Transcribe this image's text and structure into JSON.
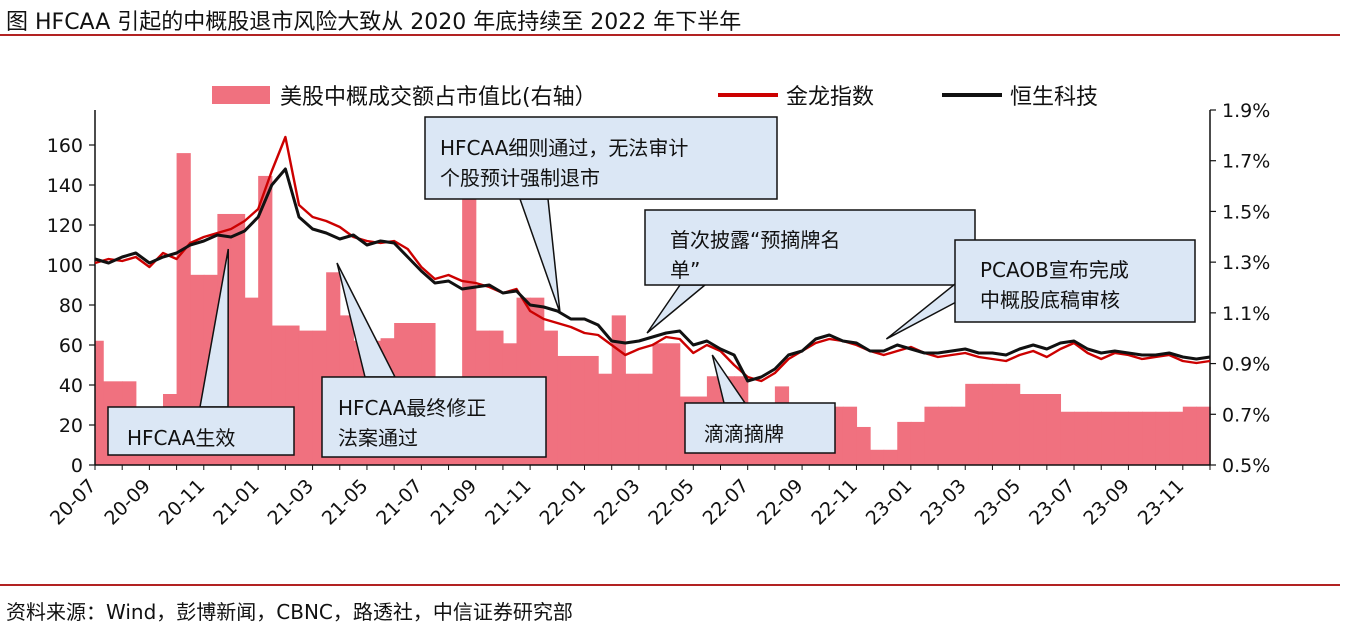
{
  "title": "图 HFCAA 引起的中概股退市风险大致从 2020 年底持续至 2022 年下半年",
  "source": "资料来源：Wind，彭博新闻，CBNC，路透社，中信证券研究部",
  "colors": {
    "bar": "#f0717f",
    "jinlong": "#cc0000",
    "hengsheng": "#111111",
    "callout_fill": "#dbe7f5",
    "rule": "#b22222"
  },
  "chart_data": {
    "type": "bar+line",
    "x_ticks": [
      "20-07",
      "20-09",
      "20-11",
      "21-01",
      "21-03",
      "21-05",
      "21-07",
      "21-09",
      "21-11",
      "22-01",
      "22-03",
      "22-05",
      "22-07",
      "22-09",
      "22-11",
      "23-01",
      "23-03",
      "23-05",
      "23-07",
      "23-09",
      "23-11"
    ],
    "y_left": {
      "ylim": [
        0,
        170
      ],
      "ticks": [
        "0",
        "20",
        "40",
        "60",
        "80",
        "100",
        "120",
        "140",
        "160"
      ]
    },
    "y_right": {
      "ylim": [
        0.5,
        1.9
      ],
      "ticks": [
        "0.5%",
        "0.7%",
        "0.9%",
        "1.1%",
        "1.3%",
        "1.5%",
        "1.7%",
        "1.9%"
      ]
    },
    "legend": [
      "美股中概成交额占市值比(右轴）",
      "金龙指数",
      "恒生科技"
    ],
    "bar_series": {
      "name": "美股中概成交额占市值比(右轴）",
      "x": [
        0,
        0.3,
        1,
        1.5,
        2,
        2.5,
        3,
        3.5,
        4,
        4.5,
        5,
        5.5,
        6,
        6.5,
        7,
        7.5,
        8,
        8.5,
        9,
        9.5,
        10,
        10.5,
        11,
        11.5,
        12,
        12.5,
        13,
        13.5,
        14,
        14.5,
        15,
        15.5,
        16,
        16.5,
        17,
        17.5,
        18,
        18.5,
        19,
        19.5,
        20,
        20.5,
        21,
        21.5,
        22,
        22.5,
        23,
        23.5,
        24,
        24.5,
        25,
        25.5,
        26,
        26.5,
        27,
        27.5,
        28,
        28.5,
        29,
        29.5,
        30,
        30.5,
        31,
        31.5,
        32,
        32.5,
        33,
        33.5,
        34,
        34.5,
        35,
        35.5,
        36,
        36.5,
        37,
        37.5,
        38,
        38.5,
        39,
        39.5,
        40,
        40.5,
        41
      ],
      "values": [
        0.99,
        0.83,
        0.83,
        0.62,
        0.62,
        0.78,
        1.73,
        1.25,
        1.25,
        1.49,
        1.49,
        1.16,
        1.64,
        1.05,
        1.05,
        1.03,
        1.03,
        1.26,
        1.09,
        0.99,
        0.99,
        1.0,
        1.06,
        1.06,
        1.06,
        0.84,
        0.84,
        1.57,
        1.03,
        1.03,
        0.98,
        1.16,
        1.16,
        1.03,
        0.93,
        0.93,
        0.93,
        0.86,
        1.09,
        0.86,
        0.86,
        0.98,
        0.98,
        0.77,
        0.77,
        0.85,
        0.85,
        0.85,
        0.71,
        0.71,
        0.81,
        0.71,
        0.71,
        0.71,
        0.73,
        0.73,
        0.65,
        0.56,
        0.56,
        0.67,
        0.67,
        0.73,
        0.73,
        0.73,
        0.82,
        0.82,
        0.82,
        0.82,
        0.78,
        0.78,
        0.78,
        0.71,
        0.71,
        0.71,
        0.71,
        0.71,
        0.71,
        0.71,
        0.71,
        0.71,
        0.73,
        0.73,
        0.73
      ]
    },
    "series": [
      {
        "name": "金龙指数",
        "x": [
          0,
          0.5,
          1,
          1.5,
          2,
          2.5,
          3,
          3.5,
          4,
          4.5,
          5,
          5.5,
          6,
          6.5,
          7,
          7.5,
          8,
          8.5,
          9,
          9.5,
          10,
          10.5,
          11,
          11.5,
          12,
          12.5,
          13,
          13.5,
          14,
          14.5,
          15,
          15.5,
          16,
          16.5,
          17,
          17.5,
          18,
          18.5,
          19,
          19.5,
          20,
          20.5,
          21,
          21.5,
          22,
          22.5,
          23,
          23.5,
          24,
          24.5,
          25,
          25.5,
          26,
          26.5,
          27,
          27.5,
          28,
          28.5,
          29,
          29.5,
          30,
          30.5,
          31,
          31.5,
          32,
          32.5,
          33,
          33.5,
          34,
          34.5,
          35,
          35.5,
          36,
          36.5,
          37,
          37.5,
          38,
          38.5,
          39,
          39.5,
          40,
          40.5,
          41
        ],
        "values": [
          101,
          103,
          102,
          104,
          99,
          106,
          103,
          111,
          114,
          116,
          118,
          122,
          128,
          147,
          164,
          130,
          124,
          122,
          119,
          114,
          112,
          111,
          112,
          108,
          99,
          93,
          95,
          92,
          91,
          89,
          86,
          88,
          77,
          73,
          71,
          69,
          66,
          65,
          60,
          55,
          58,
          60,
          64,
          63,
          56,
          60,
          57,
          50,
          44,
          42,
          46,
          53,
          57,
          61,
          63,
          62,
          60,
          57,
          55,
          57,
          59,
          56,
          54,
          55,
          56,
          54,
          53,
          52,
          55,
          57,
          54,
          58,
          61,
          56,
          53,
          56,
          55,
          53,
          54,
          55,
          52,
          51,
          52
        ]
      },
      {
        "name": "恒生科技",
        "x": [
          0,
          0.5,
          1,
          1.5,
          2,
          2.5,
          3,
          3.5,
          4,
          4.5,
          5,
          5.5,
          6,
          6.5,
          7,
          7.5,
          8,
          8.5,
          9,
          9.5,
          10,
          10.5,
          11,
          11.5,
          12,
          12.5,
          13,
          13.5,
          14,
          14.5,
          15,
          15.5,
          16,
          16.5,
          17,
          17.5,
          18,
          18.5,
          19,
          19.5,
          20,
          20.5,
          21,
          21.5,
          22,
          22.5,
          23,
          23.5,
          24,
          24.5,
          25,
          25.5,
          26,
          26.5,
          27,
          27.5,
          28,
          28.5,
          29,
          29.5,
          30,
          30.5,
          31,
          31.5,
          32,
          32.5,
          33,
          33.5,
          34,
          34.5,
          35,
          35.5,
          36,
          36.5,
          37,
          37.5,
          38,
          38.5,
          39,
          39.5,
          40,
          40.5,
          41
        ],
        "values": [
          103,
          101,
          104,
          106,
          101,
          104,
          106,
          110,
          112,
          115,
          114,
          117,
          124,
          140,
          148,
          124,
          118,
          116,
          113,
          115,
          110,
          112,
          111,
          104,
          97,
          91,
          92,
          88,
          89,
          90,
          86,
          87,
          80,
          79,
          77,
          73,
          73,
          70,
          62,
          61,
          62,
          64,
          66,
          67,
          60,
          62,
          58,
          55,
          42,
          44,
          48,
          55,
          57,
          63,
          65,
          62,
          61,
          57,
          57,
          60,
          58,
          56,
          56,
          57,
          58,
          56,
          56,
          55,
          58,
          60,
          58,
          61,
          62,
          58,
          56,
          57,
          56,
          55,
          55,
          56,
          54,
          53,
          54
        ]
      }
    ],
    "annotations": [
      {
        "lines": [
          "HFCAA生效"
        ],
        "target_x": 4.9,
        "target_y": 108
      },
      {
        "lines": [
          "HFCAA最终修正",
          "法案通过"
        ],
        "target_x": 8.9,
        "target_y": 101
      },
      {
        "lines": [
          "HFCAA细则通过，无法审计",
          "个股预计强制退市"
        ],
        "target_x": 17.1,
        "target_y": 76
      },
      {
        "lines": [
          "首次披露“预摘牌名",
          "单”"
        ],
        "target_x": 20.3,
        "target_y": 66
      },
      {
        "lines": [
          "滴滴摘牌"
        ],
        "target_x": 22.7,
        "target_y": 55
      },
      {
        "lines": [
          "PCAOB宣布完成",
          "中概股底稿审核"
        ],
        "target_x": 29.1,
        "target_y": 63
      }
    ]
  }
}
